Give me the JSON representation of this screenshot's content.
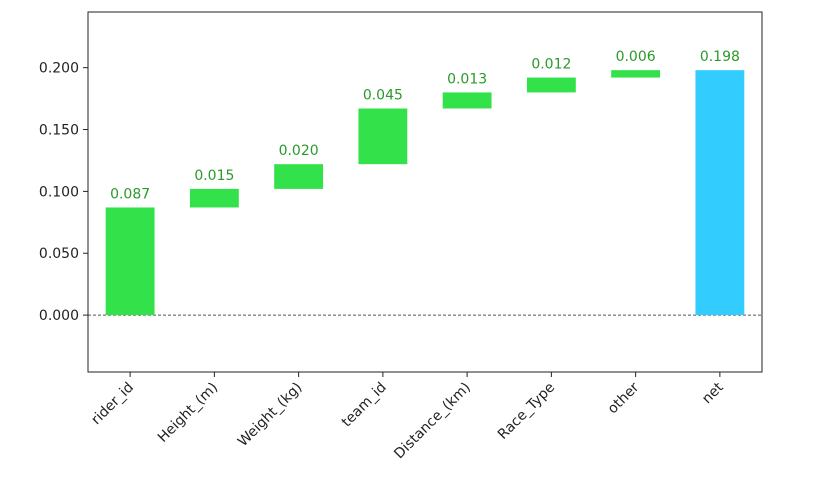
{
  "chart_data": {
    "type": "bar",
    "subtype": "waterfall",
    "title": "",
    "xlabel": "",
    "ylabel": "",
    "categories": [
      "rider_id",
      "Height_(m)",
      "Weight_(kg)",
      "team_id",
      "Distance_(km)",
      "Race_Type",
      "other",
      "net"
    ],
    "values": [
      0.087,
      0.015,
      0.02,
      0.045,
      0.013,
      0.012,
      0.006,
      0.198
    ],
    "labels": [
      "0.087",
      "0.015",
      "0.020",
      "0.045",
      "0.013",
      "0.012",
      "0.006",
      "0.198"
    ],
    "bar_kind": [
      "increase",
      "increase",
      "increase",
      "increase",
      "increase",
      "increase",
      "increase",
      "total"
    ],
    "ylim": [
      -0.046,
      0.245
    ],
    "yticks": [
      0.0,
      0.05,
      0.1,
      0.15,
      0.2
    ],
    "ytick_labels": [
      "0.000",
      "0.050",
      "0.100",
      "0.150",
      "0.200"
    ],
    "baseline": 0,
    "grid": false,
    "legend": "none",
    "colors": {
      "increase": "#33e24a",
      "total": "#33ccff",
      "label_increase": "#2a9a2a",
      "label_total": "#2a9a2a",
      "baseline": "#555555",
      "axis": "#222222"
    }
  }
}
